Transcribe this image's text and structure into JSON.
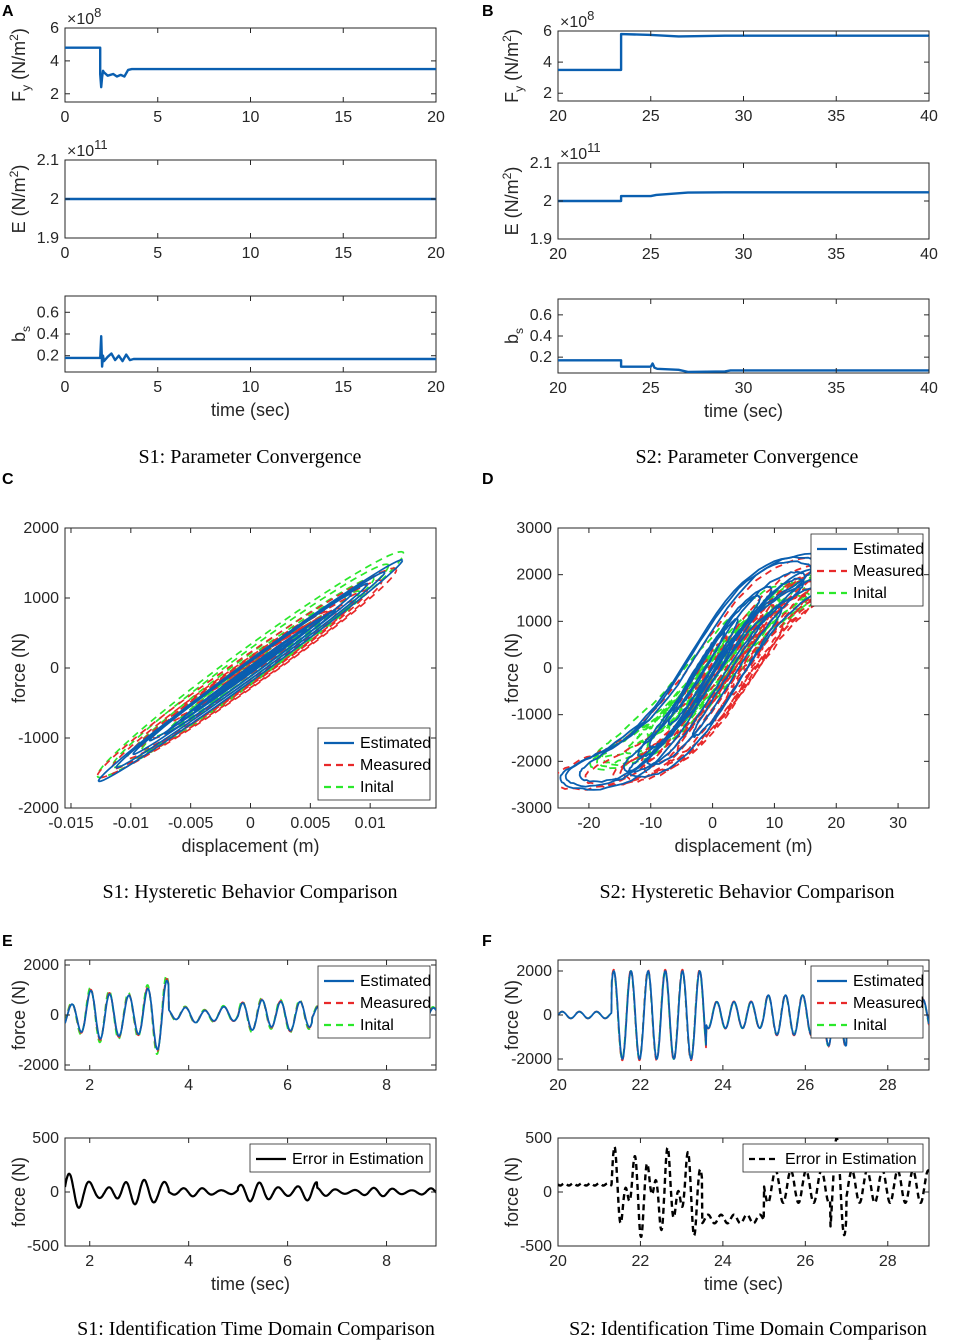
{
  "colors": {
    "estimated": "#0a5fb0",
    "measured": "#e8292a",
    "initial": "#2be82b",
    "error": "#000000"
  },
  "panels": [
    {
      "id": "A",
      "letter": "A"
    },
    {
      "id": "B",
      "letter": "B"
    },
    {
      "id": "C",
      "letter": "C"
    },
    {
      "id": "D",
      "letter": "D"
    },
    {
      "id": "E",
      "letter": "E"
    },
    {
      "id": "F",
      "letter": "F"
    }
  ],
  "captions": {
    "s1_param": "S1: Parameter Convergence",
    "s2_param": "S2: Parameter Convergence",
    "s1_hyst": "S1: Hysteretic Behavior Comparison",
    "s2_hyst": "S2: Hysteretic Behavior Comparison",
    "s1_time": "S1: Identification Time Domain Comparison",
    "s2_time": "S2: Identification Time Domain Comparison"
  },
  "chart_data": [
    {
      "id": "A1",
      "type": "line",
      "ylabel": "F_y (N/m^2)",
      "exponent": "×10^8",
      "xlim": [
        0,
        20
      ],
      "ylim": [
        1.5,
        6
      ],
      "xticks": [
        "0",
        "5",
        "10",
        "15",
        "20"
      ],
      "yticks": [
        "2",
        "4",
        "6"
      ],
      "xlabel": "",
      "series": [
        {
          "name": "Fy",
          "x": [
            0,
            1.9,
            1.9,
            1.95,
            2.0,
            2.05,
            2.1,
            2.3,
            2.6,
            2.8,
            3.0,
            3.2,
            3.4,
            3.6,
            20
          ],
          "y": [
            4.8,
            4.8,
            3.2,
            2.4,
            3.0,
            3.4,
            3.3,
            3.1,
            3.2,
            3.05,
            3.15,
            3.05,
            3.45,
            3.5,
            3.5
          ]
        }
      ]
    },
    {
      "id": "A2",
      "type": "line",
      "ylabel": "E (N/m^2)",
      "exponent": "×10^11",
      "xlim": [
        0,
        20
      ],
      "ylim": [
        1.9,
        2.1
      ],
      "xticks": [
        "0",
        "5",
        "10",
        "15",
        "20"
      ],
      "yticks": [
        "1.9",
        "2",
        "2.1"
      ],
      "xlabel": "",
      "series": [
        {
          "name": "E",
          "x": [
            0,
            20
          ],
          "y": [
            2.0,
            2.0
          ]
        }
      ]
    },
    {
      "id": "A3",
      "type": "line",
      "ylabel": "b_s",
      "xlim": [
        0,
        20
      ],
      "ylim": [
        0.05,
        0.75
      ],
      "xticks": [
        "0",
        "5",
        "10",
        "15",
        "20"
      ],
      "yticks": [
        "0.2",
        "0.4",
        "0.6"
      ],
      "xlabel": "time (sec)",
      "series": [
        {
          "name": "bs",
          "x": [
            0,
            1.9,
            1.95,
            2.0,
            2.05,
            2.1,
            2.3,
            2.5,
            2.7,
            2.9,
            3.1,
            3.3,
            3.5,
            3.7,
            20
          ],
          "y": [
            0.18,
            0.18,
            0.38,
            0.1,
            0.2,
            0.15,
            0.19,
            0.22,
            0.16,
            0.2,
            0.15,
            0.21,
            0.16,
            0.17,
            0.17
          ]
        }
      ]
    },
    {
      "id": "B1",
      "type": "line",
      "ylabel": "F_y (N/m^2)",
      "exponent": "×10^8",
      "xlim": [
        20,
        40
      ],
      "ylim": [
        1.5,
        6
      ],
      "xticks": [
        "20",
        "25",
        "30",
        "35",
        "40"
      ],
      "yticks": [
        "2",
        "4",
        "6"
      ],
      "xlabel": "",
      "series": [
        {
          "name": "Fy",
          "x": [
            20,
            23.4,
            23.4,
            25,
            26.5,
            29,
            40
          ],
          "y": [
            3.5,
            3.5,
            5.8,
            5.75,
            5.65,
            5.7,
            5.7
          ]
        }
      ]
    },
    {
      "id": "B2",
      "type": "line",
      "ylabel": "E (N/m^2)",
      "exponent": "×10^11",
      "xlim": [
        20,
        40
      ],
      "ylim": [
        1.9,
        2.1
      ],
      "xticks": [
        "20",
        "25",
        "30",
        "35",
        "40"
      ],
      "yticks": [
        "1.9",
        "2",
        "2.1"
      ],
      "xlabel": "",
      "series": [
        {
          "name": "E",
          "x": [
            20,
            23.4,
            23.4,
            25,
            25.3,
            27,
            29,
            40
          ],
          "y": [
            2.0,
            2.0,
            2.013,
            2.013,
            2.016,
            2.022,
            2.023,
            2.023
          ]
        }
      ]
    },
    {
      "id": "B3",
      "type": "line",
      "ylabel": "b_s",
      "xlim": [
        20,
        40
      ],
      "ylim": [
        0.05,
        0.75
      ],
      "xticks": [
        "20",
        "25",
        "30",
        "35",
        "40"
      ],
      "yticks": [
        "0.2",
        "0.4",
        "0.6"
      ],
      "xlabel": "time (sec)",
      "series": [
        {
          "name": "bs",
          "x": [
            20,
            23.4,
            23.4,
            25.0,
            25.1,
            25.2,
            25.35,
            26.5,
            27,
            29,
            29.3,
            40
          ],
          "y": [
            0.17,
            0.17,
            0.11,
            0.11,
            0.14,
            0.1,
            0.09,
            0.08,
            0.06,
            0.065,
            0.075,
            0.075
          ]
        }
      ]
    },
    {
      "id": "C",
      "type": "line",
      "title": "",
      "xlabel": "displacement (m)",
      "ylabel": "force (N)",
      "xlim": [
        -0.0155,
        0.0155
      ],
      "ylim": [
        -2000,
        2000
      ],
      "xticks": [
        "-0.015",
        "-0.01",
        "-0.005",
        "0",
        "0.005",
        "0.01"
      ],
      "yticks": [
        "-2000",
        "-1000",
        "0",
        "1000",
        "2000"
      ],
      "legend": [
        "Estimated",
        "Measured",
        "Inital"
      ],
      "legend_position": "bottom-right",
      "series": [
        {
          "name": "Estimated",
          "x": [
            -0.0128,
            0.0125
          ],
          "y": [
            -1600,
            1550
          ]
        },
        {
          "name": "Measured",
          "x": [
            -0.013,
            0.012
          ],
          "y": [
            -1700,
            1450
          ]
        },
        {
          "name": "Inital",
          "x": [
            -0.0128,
            0.0128
          ],
          "y": [
            -1800,
            1800
          ]
        }
      ]
    },
    {
      "id": "D",
      "type": "line",
      "title": "",
      "xlabel": "displacement (m)",
      "ylabel": "force (N)",
      "xlim": [
        -25,
        35
      ],
      "ylim": [
        -3000,
        3000
      ],
      "xticks": [
        "-20",
        "-10",
        "0",
        "10",
        "20",
        "30"
      ],
      "yticks": [
        "-3000",
        "-2000",
        "-1000",
        "0",
        "1000",
        "2000",
        "3000"
      ],
      "legend": [
        "Estimated",
        "Measured",
        "Inital"
      ],
      "legend_position": "top-right",
      "series": [
        {
          "name": "Estimated",
          "x": [
            -21,
            25
          ],
          "y": [
            -2300,
            2200
          ]
        },
        {
          "name": "Measured",
          "x": [
            -21,
            27
          ],
          "y": [
            -2350,
            1900
          ]
        },
        {
          "name": "Inital",
          "x": [
            -21,
            22
          ],
          "y": [
            -1900,
            1800
          ]
        }
      ]
    },
    {
      "id": "E1",
      "type": "line",
      "xlabel": "",
      "ylabel": "force (N)",
      "xlim": [
        1.5,
        9
      ],
      "ylim": [
        -2200,
        2200
      ],
      "xticks": [
        "2",
        "4",
        "6",
        "8"
      ],
      "yticks": [
        "-2000",
        "0",
        "2000"
      ],
      "legend": [
        "Estimated",
        "Measured",
        "Inital"
      ],
      "legend_position": "top-right",
      "series": [
        {
          "name": "Estimated"
        },
        {
          "name": "Measured"
        },
        {
          "name": "Inital"
        }
      ]
    },
    {
      "id": "E2",
      "type": "line",
      "xlabel": "time (sec)",
      "ylabel": "force (N)",
      "xlim": [
        1.5,
        9
      ],
      "ylim": [
        -500,
        500
      ],
      "xticks": [
        "2",
        "4",
        "6",
        "8"
      ],
      "yticks": [
        "-500",
        "0",
        "500"
      ],
      "legend": [
        "Error in Estimation"
      ],
      "legend_position": "top-right",
      "series": [
        {
          "name": "Error in Estimation"
        }
      ]
    },
    {
      "id": "F1",
      "type": "line",
      "xlabel": "",
      "ylabel": "force (N)",
      "xlim": [
        20,
        29
      ],
      "ylim": [
        -2500,
        2500
      ],
      "xticks": [
        "20",
        "22",
        "24",
        "26",
        "28"
      ],
      "yticks": [
        "-2000",
        "0",
        "2000"
      ],
      "legend": [
        "Estimated",
        "Measured",
        "Inital"
      ],
      "legend_position": "top-right",
      "series": [
        {
          "name": "Estimated"
        },
        {
          "name": "Measured"
        },
        {
          "name": "Inital"
        }
      ]
    },
    {
      "id": "F2",
      "type": "line",
      "xlabel": "time (sec)",
      "ylabel": "force (N)",
      "xlim": [
        20,
        29
      ],
      "ylim": [
        -500,
        500
      ],
      "xticks": [
        "20",
        "22",
        "24",
        "26",
        "28"
      ],
      "yticks": [
        "-500",
        "0",
        "500"
      ],
      "legend": [
        "Error in Estimation"
      ],
      "legend_position": "top-right",
      "series": [
        {
          "name": "Error in Estimation"
        }
      ]
    }
  ]
}
